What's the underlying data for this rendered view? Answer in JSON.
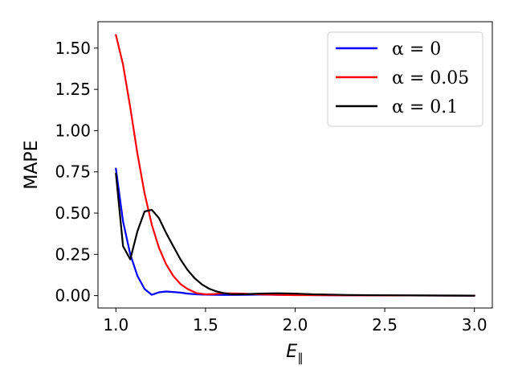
{
  "chart_data": {
    "type": "line",
    "title": "",
    "xlabel": "E",
    "xlabel_sub": "∥",
    "ylabel": "MAPE",
    "xlim": [
      0.9,
      3.1
    ],
    "ylim": [
      -0.075,
      1.66
    ],
    "xticks": [
      "1.0",
      "1.5",
      "2.0",
      "2.5",
      "3.0"
    ],
    "xtick_values": [
      1.0,
      1.5,
      2.0,
      2.5,
      3.0
    ],
    "yticks": [
      "0.00",
      "0.25",
      "0.50",
      "0.75",
      "1.00",
      "1.25",
      "1.50"
    ],
    "ytick_values": [
      0.0,
      0.25,
      0.5,
      0.75,
      1.0,
      1.25,
      1.5
    ],
    "grid": false,
    "legend_position": "top-right",
    "series": [
      {
        "name": "α = 0",
        "color": "#0000ff",
        "x": [
          1.0,
          1.04,
          1.08,
          1.12,
          1.16,
          1.2,
          1.24,
          1.28,
          1.32,
          1.36,
          1.4,
          1.45,
          1.5,
          1.6,
          1.7,
          1.8,
          1.9,
          2.0,
          2.2,
          2.5,
          3.0
        ],
        "y": [
          0.77,
          0.45,
          0.25,
          0.12,
          0.04,
          0.005,
          0.02,
          0.025,
          0.022,
          0.018,
          0.012,
          0.008,
          0.006,
          0.004,
          0.005,
          0.006,
          0.005,
          0.004,
          0.002,
          0.001,
          0.0
        ]
      },
      {
        "name": "α = 0.05",
        "color": "#ff0000",
        "x": [
          1.0,
          1.04,
          1.08,
          1.12,
          1.16,
          1.2,
          1.24,
          1.28,
          1.32,
          1.36,
          1.4,
          1.45,
          1.5,
          1.55,
          1.6,
          1.7,
          1.8,
          1.9,
          2.0,
          2.2,
          2.5,
          3.0
        ],
        "y": [
          1.58,
          1.4,
          1.14,
          0.86,
          0.62,
          0.43,
          0.29,
          0.19,
          0.12,
          0.07,
          0.04,
          0.015,
          0.008,
          0.01,
          0.014,
          0.012,
          0.008,
          0.005,
          0.003,
          0.002,
          0.001,
          0.0
        ]
      },
      {
        "name": "α = 0.1",
        "color": "#000000",
        "x": [
          1.0,
          1.04,
          1.08,
          1.12,
          1.16,
          1.2,
          1.24,
          1.28,
          1.32,
          1.36,
          1.4,
          1.44,
          1.48,
          1.52,
          1.56,
          1.6,
          1.65,
          1.7,
          1.8,
          1.9,
          2.0,
          2.1,
          2.3,
          2.5,
          3.0
        ],
        "y": [
          0.74,
          0.3,
          0.22,
          0.39,
          0.51,
          0.52,
          0.47,
          0.38,
          0.3,
          0.22,
          0.155,
          0.105,
          0.068,
          0.042,
          0.026,
          0.015,
          0.008,
          0.008,
          0.012,
          0.014,
          0.012,
          0.008,
          0.004,
          0.002,
          0.0
        ]
      }
    ]
  }
}
